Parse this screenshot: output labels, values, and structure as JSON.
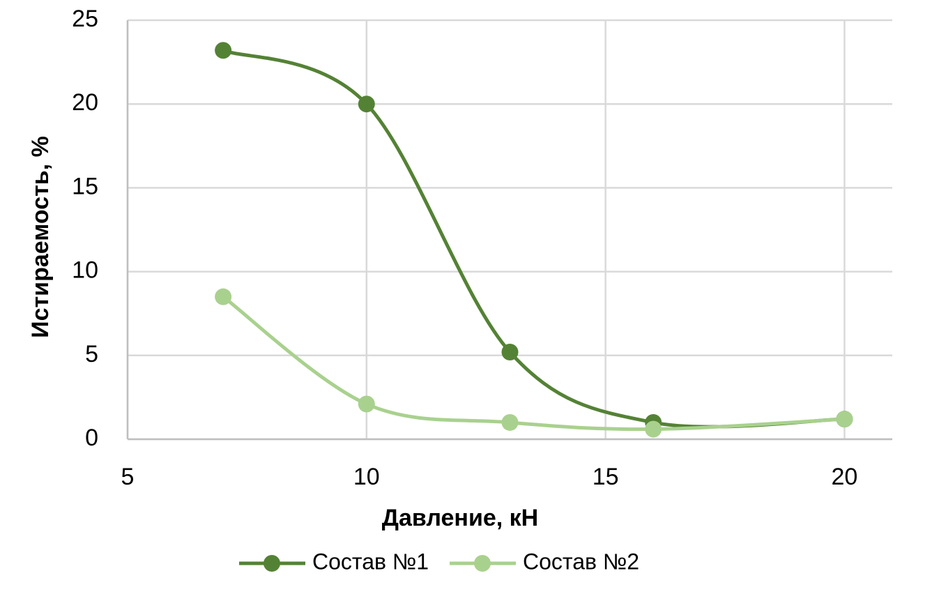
{
  "chart_data": {
    "type": "line",
    "x_label": "Давление, кН",
    "y_label": "Истираемость, %",
    "x": [
      7,
      10,
      13,
      16,
      20
    ],
    "series": [
      {
        "name": "Состав №1",
        "color": "#548235",
        "values": [
          23.2,
          20,
          5.2,
          1.0,
          1.2
        ]
      },
      {
        "name": "Состав №2",
        "color": "#a9d18e",
        "values": [
          8.5,
          2.1,
          1.0,
          0.6,
          1.2
        ]
      }
    ],
    "xlim": [
      5,
      21
    ],
    "xticks": [
      5,
      10,
      15,
      20
    ],
    "ylim": [
      0,
      25
    ],
    "yticks": [
      0,
      5,
      10,
      15,
      20,
      25
    ],
    "grid": true,
    "smooth": true,
    "legend": "bottom"
  }
}
